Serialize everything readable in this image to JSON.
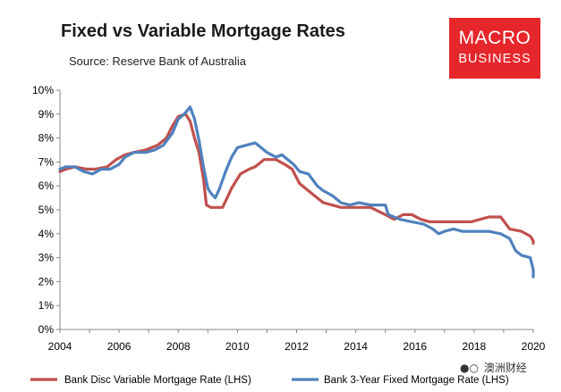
{
  "header": {
    "title": "Fixed vs Variable Mortgage Rates",
    "source": "Source: Reserve Bank of Australia"
  },
  "logo": {
    "line1": "MACRO",
    "line2": "BUSINESS",
    "color": "#e5262b"
  },
  "watermark": {
    "icon": "wechat-icon",
    "text": "澳洲财经"
  },
  "chart_data": {
    "type": "line",
    "title": "Fixed vs Variable Mortgage Rates",
    "subtitle": "Source: Reserve Bank of Australia",
    "xlim": [
      2004,
      2020
    ],
    "ylim": [
      0,
      10
    ],
    "x_ticks": [
      2004,
      2006,
      2008,
      2010,
      2012,
      2014,
      2016,
      2018,
      2020
    ],
    "x_tick_labels": [
      "2004",
      "2006",
      "2008",
      "2010",
      "2012",
      "2014",
      "2016",
      "2018",
      "2020"
    ],
    "y_ticks": [
      0,
      1,
      2,
      3,
      4,
      5,
      6,
      7,
      8,
      9,
      10
    ],
    "y_tick_labels": [
      "0%",
      "1%",
      "2%",
      "3%",
      "4%",
      "5%",
      "6%",
      "7%",
      "8%",
      "9%",
      "10%"
    ],
    "grid": false,
    "legend": "bottom",
    "series": [
      {
        "name": "Bank Disc Variable Mortgage Rate (LHS)",
        "color": "#c0504d",
        "points": [
          [
            2004.0,
            6.6
          ],
          [
            2004.2,
            6.7
          ],
          [
            2004.5,
            6.8
          ],
          [
            2004.9,
            6.7
          ],
          [
            2005.2,
            6.7
          ],
          [
            2005.6,
            6.8
          ],
          [
            2005.9,
            7.1
          ],
          [
            2006.2,
            7.3
          ],
          [
            2006.5,
            7.4
          ],
          [
            2006.9,
            7.5
          ],
          [
            2007.3,
            7.7
          ],
          [
            2007.6,
            8.0
          ],
          [
            2007.8,
            8.5
          ],
          [
            2008.0,
            8.9
          ],
          [
            2008.25,
            9.0
          ],
          [
            2008.4,
            8.7
          ],
          [
            2008.55,
            8.0
          ],
          [
            2008.7,
            7.4
          ],
          [
            2008.85,
            6.3
          ],
          [
            2008.95,
            5.2
          ],
          [
            2009.1,
            5.1
          ],
          [
            2009.5,
            5.1
          ],
          [
            2009.8,
            5.9
          ],
          [
            2010.1,
            6.5
          ],
          [
            2010.4,
            6.7
          ],
          [
            2010.6,
            6.8
          ],
          [
            2010.9,
            7.1
          ],
          [
            2011.3,
            7.1
          ],
          [
            2011.6,
            6.9
          ],
          [
            2011.85,
            6.7
          ],
          [
            2012.1,
            6.1
          ],
          [
            2012.4,
            5.8
          ],
          [
            2012.7,
            5.5
          ],
          [
            2012.9,
            5.3
          ],
          [
            2013.2,
            5.2
          ],
          [
            2013.5,
            5.1
          ],
          [
            2014.0,
            5.1
          ],
          [
            2014.5,
            5.1
          ],
          [
            2015.0,
            4.8
          ],
          [
            2015.3,
            4.6
          ],
          [
            2015.6,
            4.8
          ],
          [
            2015.9,
            4.8
          ],
          [
            2016.2,
            4.6
          ],
          [
            2016.5,
            4.5
          ],
          [
            2017.0,
            4.5
          ],
          [
            2017.5,
            4.5
          ],
          [
            2017.9,
            4.5
          ],
          [
            2018.2,
            4.6
          ],
          [
            2018.5,
            4.7
          ],
          [
            2018.9,
            4.7
          ],
          [
            2019.2,
            4.2
          ],
          [
            2019.6,
            4.1
          ],
          [
            2019.9,
            3.9
          ],
          [
            2020.2,
            3.7
          ],
          [
            2020.7,
            3.6
          ]
        ]
      },
      {
        "name": "Bank 3-Year Fixed Mortgage Rate (LHS)",
        "color": "#4f81bd",
        "points": [
          [
            2004.0,
            6.7
          ],
          [
            2004.2,
            6.8
          ],
          [
            2004.5,
            6.8
          ],
          [
            2004.8,
            6.6
          ],
          [
            2005.1,
            6.5
          ],
          [
            2005.4,
            6.7
          ],
          [
            2005.7,
            6.7
          ],
          [
            2006.0,
            6.9
          ],
          [
            2006.2,
            7.2
          ],
          [
            2006.5,
            7.4
          ],
          [
            2006.9,
            7.4
          ],
          [
            2007.2,
            7.5
          ],
          [
            2007.5,
            7.7
          ],
          [
            2007.8,
            8.2
          ],
          [
            2008.0,
            8.8
          ],
          [
            2008.2,
            9.0
          ],
          [
            2008.4,
            9.3
          ],
          [
            2008.55,
            8.8
          ],
          [
            2008.7,
            7.9
          ],
          [
            2008.85,
            6.8
          ],
          [
            2009.0,
            5.9
          ],
          [
            2009.1,
            5.7
          ],
          [
            2009.25,
            5.5
          ],
          [
            2009.4,
            5.9
          ],
          [
            2009.6,
            6.6
          ],
          [
            2009.8,
            7.2
          ],
          [
            2010.0,
            7.6
          ],
          [
            2010.3,
            7.7
          ],
          [
            2010.6,
            7.8
          ],
          [
            2010.8,
            7.6
          ],
          [
            2011.0,
            7.4
          ],
          [
            2011.3,
            7.2
          ],
          [
            2011.5,
            7.3
          ],
          [
            2011.7,
            7.1
          ],
          [
            2011.9,
            6.9
          ],
          [
            2012.1,
            6.6
          ],
          [
            2012.4,
            6.5
          ],
          [
            2012.7,
            6.0
          ],
          [
            2012.9,
            5.8
          ],
          [
            2013.2,
            5.6
          ],
          [
            2013.5,
            5.3
          ],
          [
            2013.8,
            5.2
          ],
          [
            2014.1,
            5.3
          ],
          [
            2014.5,
            5.2
          ],
          [
            2015.0,
            5.2
          ],
          [
            2015.1,
            4.8
          ],
          [
            2015.5,
            4.6
          ],
          [
            2015.9,
            4.5
          ],
          [
            2016.3,
            4.4
          ],
          [
            2016.6,
            4.2
          ],
          [
            2016.8,
            4.0
          ],
          [
            2017.0,
            4.1
          ],
          [
            2017.3,
            4.2
          ],
          [
            2017.6,
            4.1
          ],
          [
            2018.0,
            4.1
          ],
          [
            2018.5,
            4.1
          ],
          [
            2018.9,
            4.0
          ],
          [
            2019.2,
            3.8
          ],
          [
            2019.4,
            3.3
          ],
          [
            2019.6,
            3.1
          ],
          [
            2019.9,
            3.0
          ],
          [
            2020.1,
            2.5
          ],
          [
            2020.3,
            2.4
          ],
          [
            2020.5,
            2.3
          ],
          [
            2020.7,
            2.2
          ]
        ]
      }
    ]
  }
}
